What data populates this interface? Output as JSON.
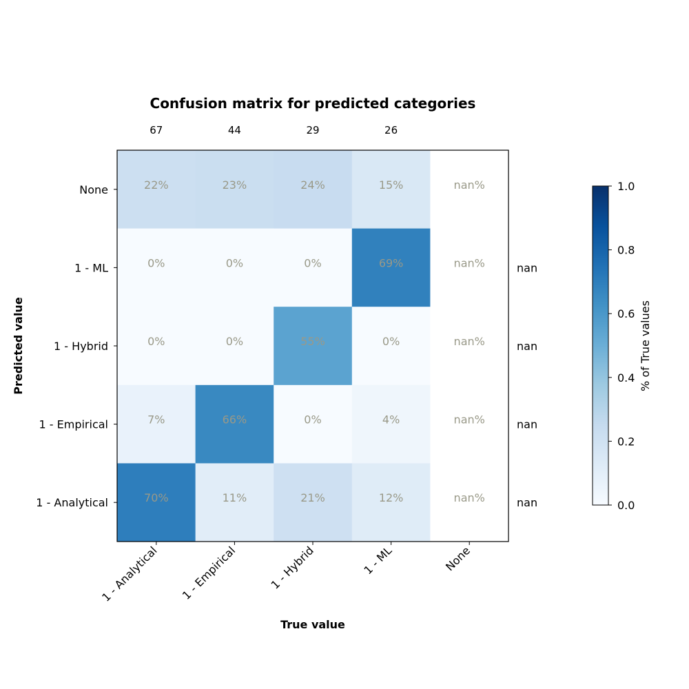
{
  "chart_data": {
    "type": "heatmap",
    "title": "Confusion matrix for predicted categories",
    "xlabel": "True value",
    "ylabel": "Predicted value",
    "x_categories": [
      "1 - Analytical",
      "1 - Empirical",
      "1 - Hybrid",
      "1 - ML",
      "None"
    ],
    "y_categories": [
      "None",
      "1 - ML",
      "1 - Hybrid",
      "1 - Empirical",
      "1 - Analytical"
    ],
    "column_counts": [
      "67",
      "44",
      "29",
      "26",
      ""
    ],
    "row_side_labels": [
      "",
      "nan",
      "nan",
      "nan",
      "nan"
    ],
    "values": [
      [
        0.22,
        0.23,
        0.24,
        0.15,
        null
      ],
      [
        0.0,
        0.0,
        0.0,
        0.69,
        null
      ],
      [
        0.0,
        0.0,
        0.55,
        0.0,
        null
      ],
      [
        0.07,
        0.66,
        0.0,
        0.04,
        null
      ],
      [
        0.7,
        0.11,
        0.21,
        0.12,
        null
      ]
    ],
    "cell_labels": [
      [
        "22%",
        "23%",
        "24%",
        "15%",
        "nan%"
      ],
      [
        "0%",
        "0%",
        "0%",
        "69%",
        "nan%"
      ],
      [
        "0%",
        "0%",
        "55%",
        "0%",
        "nan%"
      ],
      [
        "7%",
        "66%",
        "0%",
        "4%",
        "nan%"
      ],
      [
        "70%",
        "11%",
        "21%",
        "12%",
        "nan%"
      ]
    ],
    "colorbar": {
      "label": "% of True values",
      "range": [
        0,
        1
      ],
      "ticks": [
        "0.0",
        "0.2",
        "0.4",
        "0.6",
        "0.8",
        "1.0"
      ],
      "colormap": "Blues"
    }
  }
}
